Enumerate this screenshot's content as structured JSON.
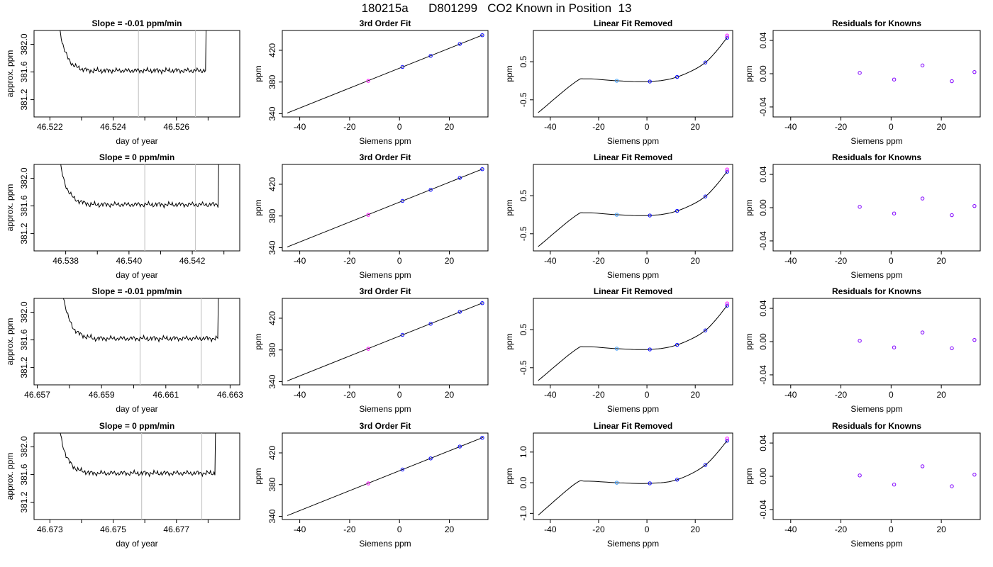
{
  "figure_title": "180215a      D801299   CO2 Known in Position  13",
  "colors": {
    "trace": "#000000",
    "window_line": "#c8c8c8",
    "fit_point": "#0000ff",
    "std_point_light": "#3399ff",
    "residual_point": "#8000ff",
    "ring": "#ff00ff"
  },
  "chart_data": [
    {
      "type": "line",
      "rows": [
        {
          "title": "Slope =  -0.01  ppm/min",
          "xlabel": "day of year",
          "ylabel": "approx. ppm",
          "xlim": [
            46.5215,
            46.528
          ],
          "ylim": [
            380.95,
            382.2
          ],
          "xticks": [
            46.522,
            46.523,
            46.524,
            46.525,
            46.526,
            46.527
          ],
          "xtick_labels": [
            "46.522",
            "",
            "46.524",
            "",
            "46.526",
            ""
          ],
          "yticks": [
            381.2,
            381.6,
            382.0
          ],
          "ytick_labels": [
            "381.2",
            "381.6",
            "382.0"
          ],
          "window": [
            46.5248,
            46.5266
          ],
          "start_x": 46.5222,
          "end_x": 46.527
        },
        {
          "title": "Slope =  0  ppm/min",
          "xlabel": "day of year",
          "ylabel": "approx. ppm",
          "xlim": [
            46.537,
            46.5435
          ],
          "ylim": [
            380.95,
            382.2
          ],
          "xticks": [
            46.538,
            46.539,
            46.54,
            46.541,
            46.542,
            46.543
          ],
          "xtick_labels": [
            "46.538",
            "",
            "46.540",
            "",
            "46.542",
            ""
          ],
          "yticks": [
            381.2,
            381.6,
            382.0
          ],
          "ytick_labels": [
            "381.2",
            "381.6",
            "382.0"
          ],
          "window": [
            46.5405,
            46.5421
          ],
          "start_x": 46.5377,
          "end_x": 46.5429
        },
        {
          "title": "Slope =  -0.01  ppm/min",
          "xlabel": "day of year",
          "ylabel": "approx. ppm",
          "xlim": [
            46.6569,
            46.6633
          ],
          "ylim": [
            380.95,
            382.2
          ],
          "xticks": [
            46.657,
            46.658,
            46.659,
            46.66,
            46.661,
            46.662,
            46.663
          ],
          "xtick_labels": [
            "46.657",
            "",
            "46.659",
            "",
            "46.661",
            "",
            "46.663"
          ],
          "yticks": [
            381.2,
            381.6,
            382.0
          ],
          "ytick_labels": [
            "381.2",
            "381.6",
            "382.0"
          ],
          "window": [
            46.6602,
            46.6621
          ],
          "start_x": 46.6577,
          "end_x": 46.6627
        },
        {
          "title": "Slope =  0  ppm/min",
          "xlabel": "day of year",
          "ylabel": "approx. ppm",
          "xlim": [
            46.6725,
            46.679
          ],
          "ylim": [
            380.95,
            382.2
          ],
          "xticks": [
            46.673,
            46.674,
            46.675,
            46.676,
            46.677,
            46.678
          ],
          "xtick_labels": [
            "46.673",
            "",
            "46.675",
            "",
            "46.677",
            ""
          ],
          "yticks": [
            381.2,
            381.6,
            382.0
          ],
          "ytick_labels": [
            "381.2",
            "381.6",
            "382.0"
          ],
          "window": [
            46.6759,
            46.6778
          ],
          "start_x": 46.6732,
          "end_x": 46.6783
        }
      ]
    },
    {
      "type": "scatter",
      "title": "3rd Order Fit",
      "xlabel": "Siemens ppm",
      "ylabel": "ppm",
      "xlim": [
        -47,
        35.5
      ],
      "ylim": [
        336,
        445
      ],
      "xticks": [
        -40,
        -20,
        0,
        20
      ],
      "yticks": [
        340,
        380,
        420
      ],
      "line": {
        "x": [
          -45,
          33.5
        ],
        "y": [
          341,
          439.5
        ]
      },
      "points": {
        "x": [
          -12.5,
          1.2,
          12.5,
          24.2,
          33.2
        ],
        "y": [
          381.5,
          399,
          413,
          428,
          439
        ]
      }
    },
    {
      "type": "scatter",
      "title": "Linear Fit Removed",
      "xlabel": "Siemens ppm",
      "ylabel": "ppm",
      "xlim": [
        -47,
        35.5
      ],
      "xticks": [
        -40,
        -20,
        0,
        20
      ],
      "points_x": [
        -12.5,
        1.2,
        12.5,
        24.2,
        33.2
      ],
      "rows": [
        {
          "ylim": [
            -0.95,
            1.32
          ],
          "yticks": [
            -0.5,
            0.5
          ],
          "ytick_labels": [
            "-0.5",
            "0.5"
          ],
          "curve": [
            -0.83,
            0.049,
            -0.0121,
            0.00042,
            1.36e-05
          ],
          "points_y": [
            0.0,
            -0.02,
            0.1,
            0.48,
            1.13
          ]
        },
        {
          "ylim": [
            -0.95,
            1.32
          ],
          "yticks": [
            -0.5,
            0.5
          ],
          "ytick_labels": [
            "-0.5",
            "0.5"
          ],
          "curve": [
            -0.83,
            0.049,
            -0.0121,
            0.00042,
            1.36e-05
          ],
          "points_y": [
            0.0,
            -0.02,
            0.1,
            0.48,
            1.13
          ]
        },
        {
          "ylim": [
            -0.95,
            1.32
          ],
          "yticks": [
            -0.5,
            0.5
          ],
          "ytick_labels": [
            "-0.5",
            "0.5"
          ],
          "curve": [
            -0.83,
            0.049,
            -0.0121,
            0.00042,
            1.36e-05
          ],
          "points_y": [
            0.0,
            -0.02,
            0.1,
            0.48,
            1.13
          ]
        },
        {
          "ylim": [
            -1.2,
            1.62
          ],
          "yticks": [
            -1.0,
            0.0,
            1.0
          ],
          "ytick_labels": [
            "-1.0",
            "0.0",
            "1.0"
          ],
          "curve": [
            -1.05,
            0.062,
            -0.0153,
            0.00053,
            1.72e-05
          ],
          "points_y": [
            0.0,
            -0.02,
            0.1,
            0.58,
            1.37
          ]
        }
      ]
    },
    {
      "type": "scatter",
      "title": "Residuals for Knowns",
      "xlabel": "Siemens ppm",
      "ylabel": "ppm",
      "xlim": [
        -47,
        35.5
      ],
      "ylim": [
        -0.052,
        0.052
      ],
      "xticks": [
        -40,
        -20,
        0,
        20
      ],
      "yticks": [
        -0.04,
        0.0,
        0.04
      ],
      "ytick_labels": [
        "-0.04",
        "0.00",
        "0.04"
      ],
      "points_x": [
        -12.5,
        1.2,
        12.5,
        24.2,
        33.2
      ],
      "rows": [
        {
          "points_y": [
            0.001,
            -0.007,
            0.01,
            -0.009,
            0.002
          ]
        },
        {
          "points_y": [
            0.001,
            -0.007,
            0.011,
            -0.009,
            0.002
          ]
        },
        {
          "points_y": [
            0.001,
            -0.007,
            0.011,
            -0.008,
            0.002
          ]
        },
        {
          "points_y": [
            0.001,
            -0.01,
            0.012,
            -0.012,
            0.002
          ]
        }
      ]
    }
  ]
}
